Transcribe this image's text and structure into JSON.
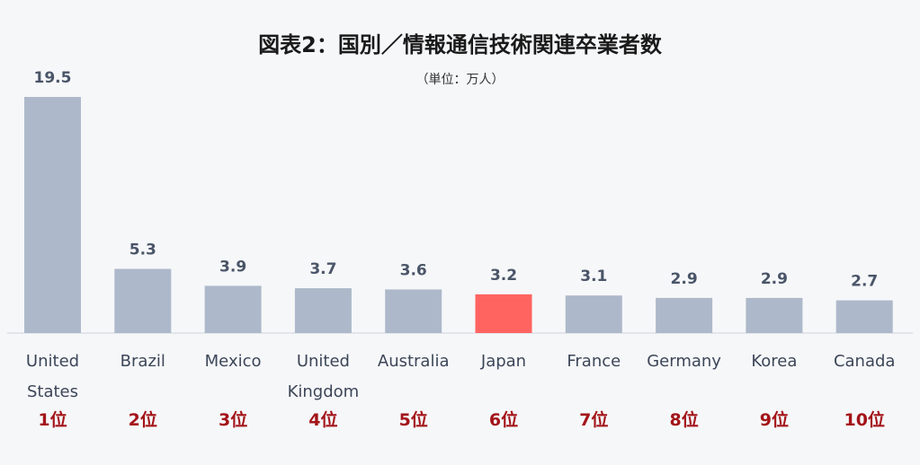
{
  "chart_data": {
    "type": "bar",
    "title": "図表2：国別／情報通信技術関連卒業者数",
    "subtitle": "（単位：万人）",
    "categories": [
      [
        "United",
        "States"
      ],
      [
        "Brazil"
      ],
      [
        "Mexico"
      ],
      [
        "United",
        "Kingdom"
      ],
      [
        "Australia"
      ],
      [
        "Japan"
      ],
      [
        "France"
      ],
      [
        "Germany"
      ],
      [
        "Korea"
      ],
      [
        "Canada"
      ]
    ],
    "values": [
      19.5,
      5.3,
      3.9,
      3.7,
      3.6,
      3.2,
      3.1,
      2.9,
      2.9,
      2.7
    ],
    "value_labels": [
      "19.5",
      "5.3",
      "3.9",
      "3.7",
      "3.6",
      "3.2",
      "3.1",
      "2.9",
      "2.9",
      "2.7"
    ],
    "ranks": [
      "1位",
      "2位",
      "3位",
      "4位",
      "5位",
      "6位",
      "7位",
      "8位",
      "9位",
      "10位"
    ],
    "ylim": [
      0,
      19.5
    ],
    "grid": false,
    "legend": "none",
    "colors": {
      "default_bar": "#adb9ca",
      "highlight_bar": "#ff6461",
      "rank_text": "#a31419",
      "value_text": "#4a5568",
      "baseline": "#cfd5dd"
    },
    "highlight_category": "Japan"
  }
}
